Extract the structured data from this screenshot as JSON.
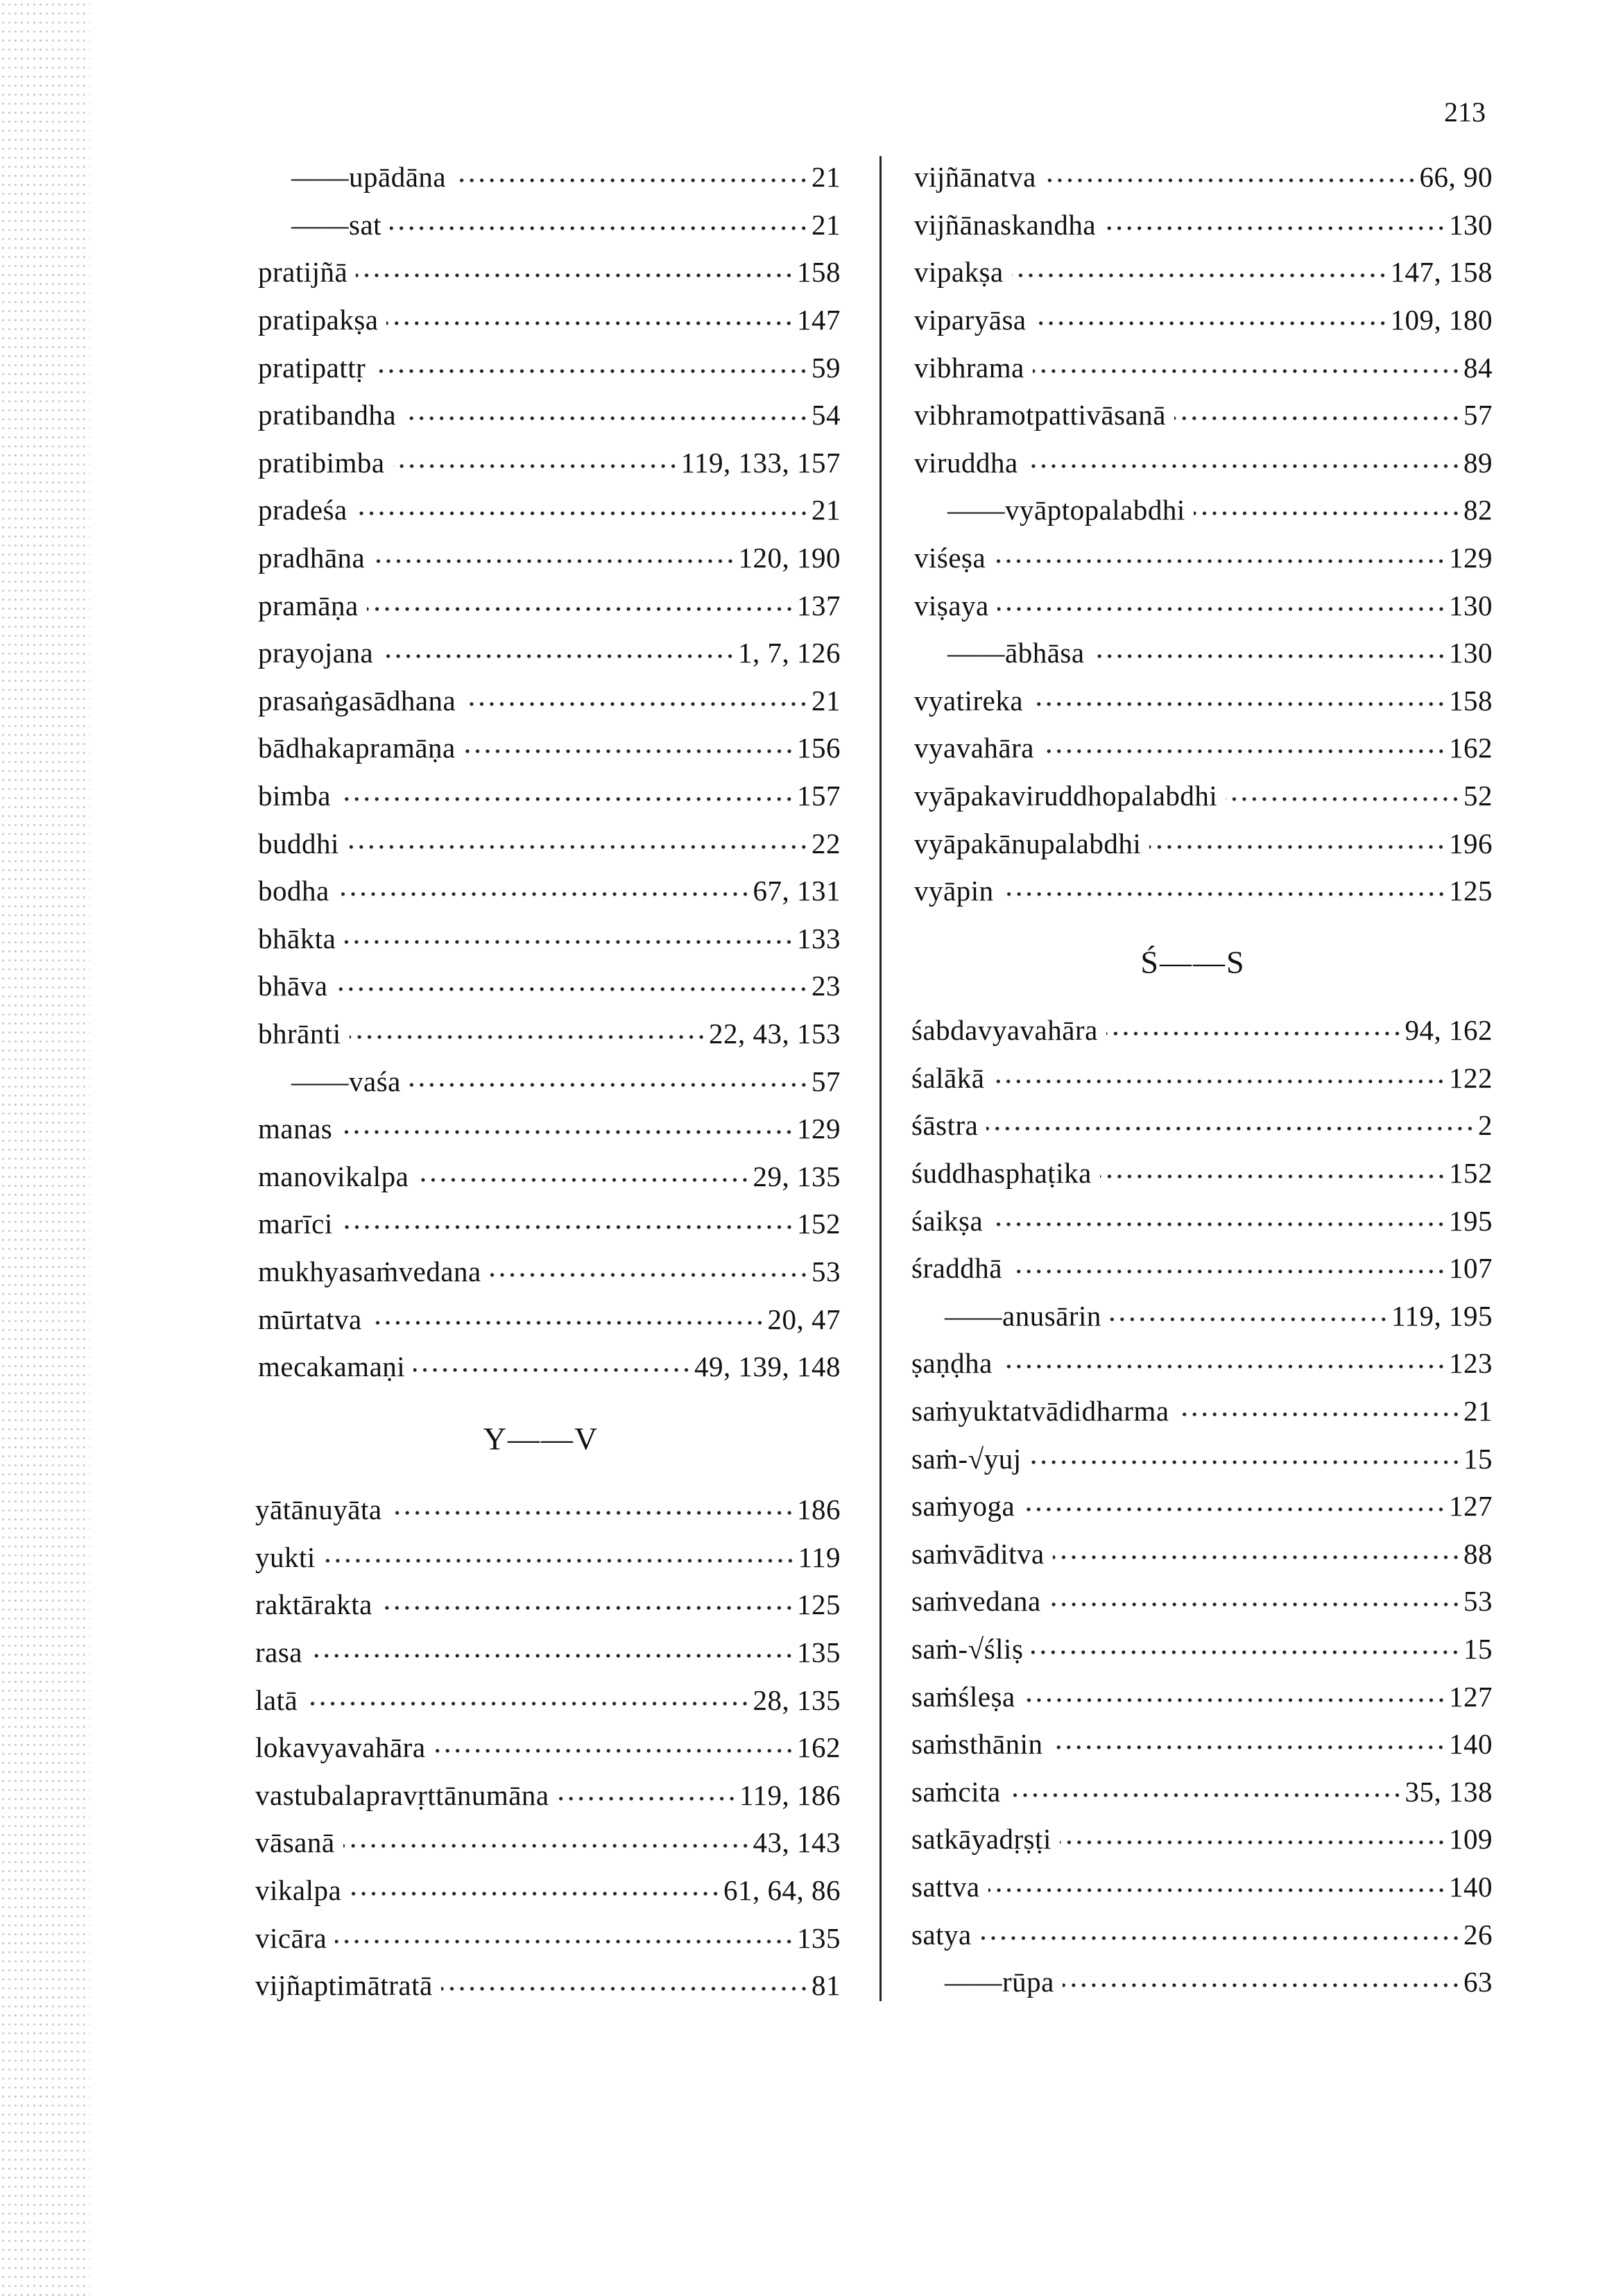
{
  "page_number": "213",
  "left": {
    "entries": [
      {
        "term": "——upādāna",
        "pages": "21",
        "sub": true
      },
      {
        "term": "——sat",
        "pages": "21",
        "sub": true
      },
      {
        "term": "pratijñā",
        "pages": "158"
      },
      {
        "term": "pratipakṣa",
        "pages": "147"
      },
      {
        "term": "pratipattṛ",
        "pages": "59"
      },
      {
        "term": "pratibandha",
        "pages": "54"
      },
      {
        "term": "pratibimba",
        "pages": "119, 133, 157"
      },
      {
        "term": "pradeśa",
        "pages": "21"
      },
      {
        "term": "pradhāna",
        "pages": "120, 190"
      },
      {
        "term": "pramāṇa",
        "pages": "137"
      },
      {
        "term": "prayojana",
        "pages": "1, 7, 126"
      },
      {
        "term": "prasaṅgasādhana",
        "pages": "21"
      },
      {
        "term": "bādhakapramāṇa",
        "pages": "156"
      },
      {
        "term": "bimba",
        "pages": "157"
      },
      {
        "term": "buddhi",
        "pages": "22"
      },
      {
        "term": "bodha",
        "pages": "67, 131"
      },
      {
        "term": "bhākta",
        "pages": "133"
      },
      {
        "term": "bhāva",
        "pages": "23"
      },
      {
        "term": "bhrānti",
        "pages": "22, 43, 153"
      },
      {
        "term": "——vaśa",
        "pages": "57",
        "sub": true
      },
      {
        "term": "manas",
        "pages": "129"
      },
      {
        "term": "manovikalpa",
        "pages": "29, 135"
      },
      {
        "term": "marīci",
        "pages": "152"
      },
      {
        "term": "mukhyasaṁvedana",
        "pages": "53"
      },
      {
        "term": "mūrtatva",
        "pages": "20, 47"
      },
      {
        "term": "mecakamaṇi",
        "pages": "49, 139, 148"
      }
    ],
    "heading": "Y——V",
    "entries2": [
      {
        "term": "yātānuyāta",
        "pages": "186"
      },
      {
        "term": "yukti",
        "pages": "119"
      },
      {
        "term": "raktārakta",
        "pages": "125"
      },
      {
        "term": "rasa",
        "pages": "135"
      },
      {
        "term": "latā",
        "pages": "28, 135"
      },
      {
        "term": "lokavyavahāra",
        "pages": "162"
      },
      {
        "term": "vastubalapravṛttānumāna",
        "pages": "119, 186"
      },
      {
        "term": "vāsanā",
        "pages": "43, 143"
      },
      {
        "term": "vikalpa",
        "pages": "61, 64, 86"
      },
      {
        "term": "vicāra",
        "pages": "135"
      },
      {
        "term": "vijñaptimātratā",
        "pages": "81"
      }
    ]
  },
  "right": {
    "entries": [
      {
        "term": "vijñānatva",
        "pages": "66, 90"
      },
      {
        "term": "vijñānaskandha",
        "pages": "130"
      },
      {
        "term": "vipakṣa",
        "pages": "147, 158"
      },
      {
        "term": "viparyāsa",
        "pages": "109, 180"
      },
      {
        "term": "vibhrama",
        "pages": "84"
      },
      {
        "term": "vibhramotpattivāsanā",
        "pages": "57"
      },
      {
        "term": "viruddha",
        "pages": "89"
      },
      {
        "term": "——vyāptopalabdhi",
        "pages": "82",
        "sub": true
      },
      {
        "term": "viśeṣa",
        "pages": "129"
      },
      {
        "term": "viṣaya",
        "pages": "130"
      },
      {
        "term": "——ābhāsa",
        "pages": "130",
        "sub": true
      },
      {
        "term": "vyatireka",
        "pages": "158"
      },
      {
        "term": "vyavahāra",
        "pages": "162"
      },
      {
        "term": "vyāpakaviruddhopalabdhi",
        "pages": "52"
      },
      {
        "term": "vyāpakānupalabdhi",
        "pages": "196"
      },
      {
        "term": "vyāpin",
        "pages": "125"
      }
    ],
    "heading": "Ś——S",
    "entries2": [
      {
        "term": "śabdavyavahāra",
        "pages": "94, 162"
      },
      {
        "term": "śalākā",
        "pages": "122"
      },
      {
        "term": "śāstra",
        "pages": "2"
      },
      {
        "term": "śuddhasphaṭika",
        "pages": "152"
      },
      {
        "term": "śaikṣa",
        "pages": "195"
      },
      {
        "term": "śraddhā",
        "pages": "107"
      },
      {
        "term": "——anusārin",
        "pages": "119, 195",
        "sub": true
      },
      {
        "term": "ṣaṇḍha",
        "pages": "123"
      },
      {
        "term": "saṁyuktatvādidharma",
        "pages": "21"
      },
      {
        "term": "saṁ-√yuj",
        "pages": "15"
      },
      {
        "term": "saṁyoga",
        "pages": "127"
      },
      {
        "term": "saṁvāditva",
        "pages": "88"
      },
      {
        "term": "saṁvedana",
        "pages": "53"
      },
      {
        "term": "saṁ-√śliṣ",
        "pages": "15"
      },
      {
        "term": "saṁśleṣa",
        "pages": "127"
      },
      {
        "term": "saṁsthānin",
        "pages": "140"
      },
      {
        "term": "saṁcita",
        "pages": "35, 138"
      },
      {
        "term": "satkāyadṛṣṭi",
        "pages": "109"
      },
      {
        "term": "sattva",
        "pages": "140"
      },
      {
        "term": "satya",
        "pages": "26"
      },
      {
        "term": "——rūpa",
        "pages": "63",
        "sub": true
      }
    ]
  }
}
